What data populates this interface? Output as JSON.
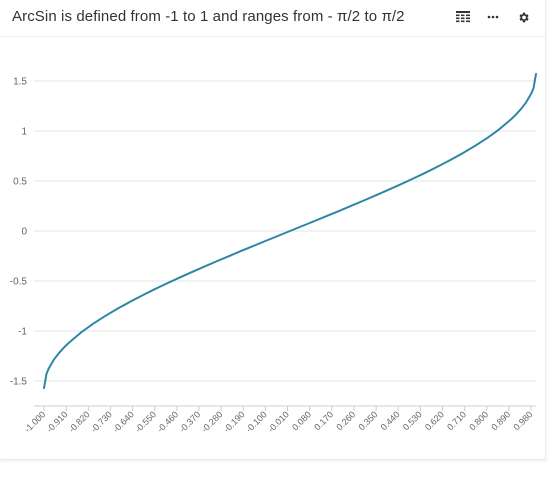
{
  "header": {
    "title": "ArcSin is defined from -1 to 1 and ranges from - π/2 to π/2",
    "icons": [
      "table-icon",
      "more-icon",
      "gear-icon"
    ]
  },
  "colors": {
    "line": "#2e86a6",
    "grid": "#e6e6e6",
    "tick_text": "#666666",
    "title": "#333333"
  },
  "chart_data": {
    "type": "line",
    "title": "ArcSin is defined from -1 to 1 and ranges from - π/2 to π/2",
    "xlabel": "",
    "ylabel": "",
    "xlim": [
      -1,
      1
    ],
    "ylim": [
      -1.6,
      1.6
    ],
    "yticks": [
      -1.5,
      -1,
      -0.5,
      0,
      0.5,
      1,
      1.5
    ],
    "ytick_labels": [
      "-1.5",
      "-1",
      "-0.5",
      "0",
      "0.5",
      "1",
      "1.5"
    ],
    "xtick_labels": [
      "-1.000",
      "-0.910",
      "-0.820",
      "-0.730",
      "-0.640",
      "-0.550",
      "-0.460",
      "-0.370",
      "-0.280",
      "-0.190",
      "-0.100",
      "-0.010",
      "0.080",
      "0.170",
      "0.260",
      "0.350",
      "0.440",
      "0.530",
      "0.620",
      "0.710",
      "0.800",
      "0.890",
      "0.980"
    ],
    "grid": true,
    "legend": "none",
    "series": [
      {
        "x": [
          -1.0,
          -0.99,
          -0.98,
          -0.96,
          -0.94,
          -0.92,
          -0.9,
          -0.85,
          -0.8,
          -0.75,
          -0.7,
          -0.65,
          -0.6,
          -0.55,
          -0.5,
          -0.45,
          -0.4,
          -0.35,
          -0.3,
          -0.25,
          -0.2,
          -0.15,
          -0.1,
          -0.05,
          0.0,
          0.05,
          0.1,
          0.15,
          0.2,
          0.25,
          0.3,
          0.35,
          0.4,
          0.45,
          0.5,
          0.55,
          0.6,
          0.65,
          0.7,
          0.75,
          0.8,
          0.85,
          0.9,
          0.92,
          0.94,
          0.96,
          0.98,
          0.99,
          1.0
        ],
        "y": [
          -1.571,
          -1.429,
          -1.371,
          -1.287,
          -1.223,
          -1.168,
          -1.12,
          -1.016,
          -0.927,
          -0.848,
          -0.775,
          -0.708,
          -0.644,
          -0.582,
          -0.524,
          -0.467,
          -0.412,
          -0.358,
          -0.305,
          -0.253,
          -0.201,
          -0.151,
          -0.1,
          -0.05,
          0.0,
          0.05,
          0.1,
          0.151,
          0.201,
          0.253,
          0.305,
          0.358,
          0.412,
          0.467,
          0.524,
          0.582,
          0.644,
          0.708,
          0.775,
          0.848,
          0.927,
          1.016,
          1.12,
          1.168,
          1.223,
          1.287,
          1.371,
          1.429,
          1.571
        ]
      }
    ]
  }
}
